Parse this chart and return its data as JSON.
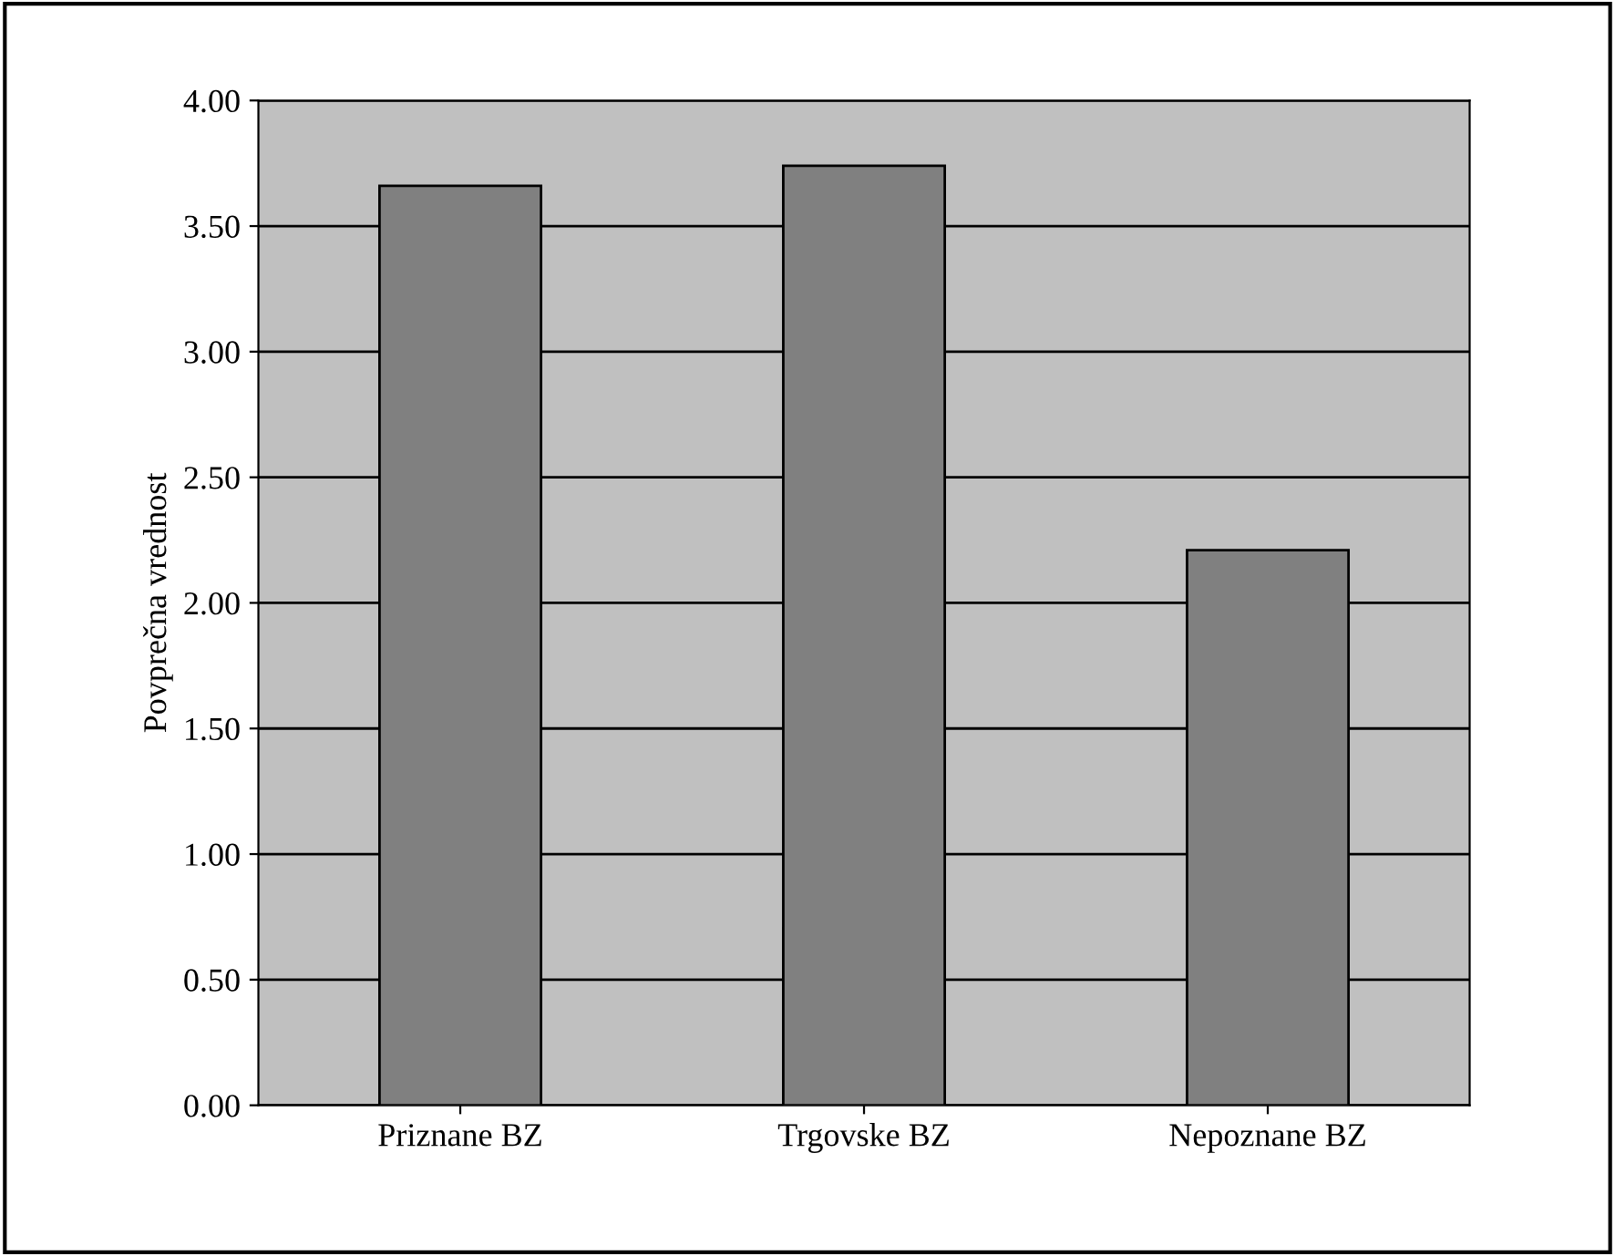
{
  "chart_data": {
    "type": "bar",
    "ylabel": "Povprečna vrednost",
    "categories": [
      "Priznane BZ",
      "Trgovske BZ",
      "Nepoznane BZ"
    ],
    "values": [
      3.66,
      3.74,
      2.21
    ],
    "color": "#808080",
    "ylim": [
      0,
      4
    ],
    "yticks": [
      {
        "value": 0,
        "label": "0.00"
      },
      {
        "value": 0.5,
        "label": "0.50"
      },
      {
        "value": 1,
        "label": "1.00"
      },
      {
        "value": 1.5,
        "label": "1.50"
      },
      {
        "value": 2,
        "label": "2.00"
      },
      {
        "value": 2.5,
        "label": "2.50"
      },
      {
        "value": 3,
        "label": "3.00"
      },
      {
        "value": 3.5,
        "label": "3.50"
      },
      {
        "value": 4,
        "label": "4.00"
      }
    ],
    "grid": "y"
  }
}
